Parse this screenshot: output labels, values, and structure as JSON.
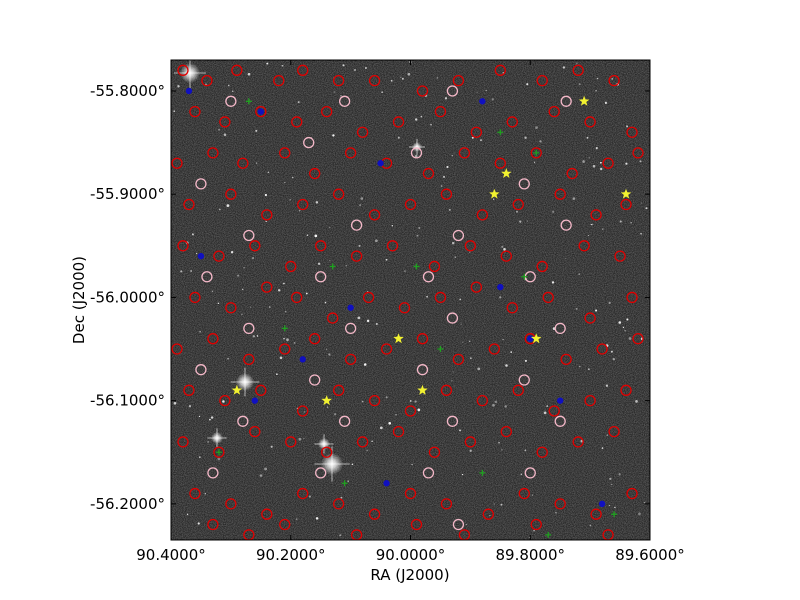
{
  "chart_data": {
    "type": "scatter",
    "title": "",
    "xlabel": "RA (J2000)",
    "ylabel": "Dec (J2000)",
    "xlim": [
      90.4,
      89.6
    ],
    "ylim": [
      -56.235,
      -55.77
    ],
    "grid": false,
    "x_ticks": [
      {
        "value": 90.4,
        "label": "90.4000°"
      },
      {
        "value": 90.2,
        "label": "90.2000°"
      },
      {
        "value": 90.0,
        "label": "90.0000°"
      },
      {
        "value": 89.8,
        "label": "89.8000°"
      },
      {
        "value": 89.6,
        "label": "89.6000°"
      }
    ],
    "y_ticks": [
      {
        "value": -55.8,
        "label": "-55.8000°"
      },
      {
        "value": -55.9,
        "label": "-55.9000°"
      },
      {
        "value": -56.0,
        "label": "-56.0000°"
      },
      {
        "value": -56.1,
        "label": "-56.1000°"
      },
      {
        "value": -56.2,
        "label": "-56.2000°"
      }
    ],
    "background": "sky-image-grayscale",
    "series": [
      {
        "marker": "open-circle",
        "color": "#e00000",
        "points": [
          [
            90.38,
            -55.78
          ],
          [
            90.34,
            -55.79
          ],
          [
            90.29,
            -55.78
          ],
          [
            90.22,
            -55.79
          ],
          [
            90.18,
            -55.78
          ],
          [
            90.12,
            -55.79
          ],
          [
            90.06,
            -55.79
          ],
          [
            89.98,
            -55.8
          ],
          [
            89.92,
            -55.79
          ],
          [
            89.85,
            -55.78
          ],
          [
            89.78,
            -55.79
          ],
          [
            89.72,
            -55.78
          ],
          [
            89.66,
            -55.79
          ],
          [
            90.36,
            -55.82
          ],
          [
            90.31,
            -55.83
          ],
          [
            90.25,
            -55.82
          ],
          [
            90.19,
            -55.83
          ],
          [
            90.14,
            -55.82
          ],
          [
            90.08,
            -55.84
          ],
          [
            90.02,
            -55.83
          ],
          [
            89.95,
            -55.82
          ],
          [
            89.89,
            -55.84
          ],
          [
            89.83,
            -55.83
          ],
          [
            89.76,
            -55.82
          ],
          [
            89.7,
            -55.83
          ],
          [
            89.63,
            -55.84
          ],
          [
            90.39,
            -55.87
          ],
          [
            90.33,
            -55.86
          ],
          [
            90.28,
            -55.87
          ],
          [
            90.21,
            -55.86
          ],
          [
            90.16,
            -55.88
          ],
          [
            90.1,
            -55.86
          ],
          [
            90.04,
            -55.87
          ],
          [
            89.97,
            -55.88
          ],
          [
            89.91,
            -55.86
          ],
          [
            89.85,
            -55.87
          ],
          [
            89.79,
            -55.86
          ],
          [
            89.73,
            -55.88
          ],
          [
            89.67,
            -55.87
          ],
          [
            89.62,
            -55.86
          ],
          [
            90.37,
            -55.91
          ],
          [
            90.3,
            -55.9
          ],
          [
            90.24,
            -55.92
          ],
          [
            90.18,
            -55.91
          ],
          [
            90.12,
            -55.9
          ],
          [
            90.06,
            -55.92
          ],
          [
            90.0,
            -55.91
          ],
          [
            89.94,
            -55.9
          ],
          [
            89.88,
            -55.92
          ],
          [
            89.82,
            -55.91
          ],
          [
            89.75,
            -55.9
          ],
          [
            89.69,
            -55.92
          ],
          [
            89.64,
            -55.91
          ],
          [
            90.38,
            -55.95
          ],
          [
            90.32,
            -55.96
          ],
          [
            90.26,
            -55.95
          ],
          [
            90.2,
            -55.97
          ],
          [
            90.15,
            -55.95
          ],
          [
            90.09,
            -55.96
          ],
          [
            90.03,
            -55.95
          ],
          [
            89.96,
            -55.97
          ],
          [
            89.9,
            -55.95
          ],
          [
            89.84,
            -55.96
          ],
          [
            89.78,
            -55.97
          ],
          [
            89.71,
            -55.95
          ],
          [
            89.65,
            -55.96
          ],
          [
            90.36,
            -56.0
          ],
          [
            90.3,
            -56.01
          ],
          [
            90.24,
            -55.99
          ],
          [
            90.19,
            -56.0
          ],
          [
            90.13,
            -56.02
          ],
          [
            90.07,
            -56.0
          ],
          [
            90.01,
            -56.01
          ],
          [
            89.95,
            -56.0
          ],
          [
            89.89,
            -55.99
          ],
          [
            89.83,
            -56.01
          ],
          [
            89.77,
            -56.0
          ],
          [
            89.7,
            -56.02
          ],
          [
            89.63,
            -56.0
          ],
          [
            90.39,
            -56.05
          ],
          [
            90.33,
            -56.04
          ],
          [
            90.27,
            -56.06
          ],
          [
            90.21,
            -56.05
          ],
          [
            90.16,
            -56.04
          ],
          [
            90.1,
            -56.06
          ],
          [
            90.04,
            -56.05
          ],
          [
            89.98,
            -56.04
          ],
          [
            89.92,
            -56.06
          ],
          [
            89.86,
            -56.05
          ],
          [
            89.8,
            -56.04
          ],
          [
            89.74,
            -56.06
          ],
          [
            89.68,
            -56.05
          ],
          [
            89.62,
            -56.04
          ],
          [
            90.37,
            -56.09
          ],
          [
            90.31,
            -56.1
          ],
          [
            90.25,
            -56.09
          ],
          [
            90.18,
            -56.11
          ],
          [
            90.12,
            -56.09
          ],
          [
            90.06,
            -56.1
          ],
          [
            90.0,
            -56.11
          ],
          [
            89.94,
            -56.09
          ],
          [
            89.88,
            -56.1
          ],
          [
            89.82,
            -56.09
          ],
          [
            89.76,
            -56.11
          ],
          [
            89.7,
            -56.1
          ],
          [
            89.64,
            -56.09
          ],
          [
            90.38,
            -56.14
          ],
          [
            90.32,
            -56.15
          ],
          [
            90.26,
            -56.13
          ],
          [
            90.2,
            -56.14
          ],
          [
            90.14,
            -56.15
          ],
          [
            90.08,
            -56.14
          ],
          [
            90.02,
            -56.13
          ],
          [
            89.96,
            -56.15
          ],
          [
            89.9,
            -56.14
          ],
          [
            89.84,
            -56.13
          ],
          [
            89.78,
            -56.15
          ],
          [
            89.72,
            -56.14
          ],
          [
            89.66,
            -56.13
          ],
          [
            90.36,
            -56.19
          ],
          [
            90.3,
            -56.2
          ],
          [
            90.24,
            -56.21
          ],
          [
            90.18,
            -56.19
          ],
          [
            90.12,
            -56.2
          ],
          [
            90.06,
            -56.21
          ],
          [
            90.0,
            -56.19
          ],
          [
            89.94,
            -56.2
          ],
          [
            89.87,
            -56.21
          ],
          [
            89.81,
            -56.19
          ],
          [
            89.75,
            -56.2
          ],
          [
            89.69,
            -56.21
          ],
          [
            89.63,
            -56.19
          ],
          [
            90.33,
            -56.22
          ],
          [
            90.27,
            -56.23
          ],
          [
            90.21,
            -56.22
          ],
          [
            90.09,
            -56.23
          ],
          [
            89.99,
            -56.22
          ],
          [
            89.91,
            -56.23
          ],
          [
            89.79,
            -56.22
          ],
          [
            89.67,
            -56.23
          ]
        ]
      },
      {
        "marker": "open-circle",
        "color": "#f4b8c8",
        "points": [
          [
            90.3,
            -55.81
          ],
          [
            90.11,
            -55.81
          ],
          [
            89.93,
            -55.8
          ],
          [
            89.74,
            -55.81
          ],
          [
            90.35,
            -55.89
          ],
          [
            90.17,
            -55.85
          ],
          [
            89.99,
            -55.86
          ],
          [
            89.81,
            -55.89
          ],
          [
            90.27,
            -55.94
          ],
          [
            90.09,
            -55.93
          ],
          [
            89.92,
            -55.94
          ],
          [
            89.74,
            -55.93
          ],
          [
            90.34,
            -55.98
          ],
          [
            90.15,
            -55.98
          ],
          [
            89.97,
            -55.98
          ],
          [
            89.8,
            -55.98
          ],
          [
            90.27,
            -56.03
          ],
          [
            90.1,
            -56.03
          ],
          [
            89.93,
            -56.02
          ],
          [
            89.75,
            -56.03
          ],
          [
            90.35,
            -56.07
          ],
          [
            90.16,
            -56.08
          ],
          [
            89.98,
            -56.07
          ],
          [
            89.81,
            -56.08
          ],
          [
            90.28,
            -56.12
          ],
          [
            90.11,
            -56.12
          ],
          [
            89.93,
            -56.12
          ],
          [
            89.75,
            -56.12
          ],
          [
            90.33,
            -56.17
          ],
          [
            90.15,
            -56.17
          ],
          [
            89.97,
            -56.17
          ],
          [
            89.8,
            -56.17
          ],
          [
            89.92,
            -56.22
          ]
        ]
      },
      {
        "marker": "filled-dot",
        "color": "#1010c0",
        "points": [
          [
            90.37,
            -55.8
          ],
          [
            90.25,
            -55.82
          ],
          [
            89.88,
            -55.81
          ],
          [
            90.05,
            -55.87
          ],
          [
            90.35,
            -55.96
          ],
          [
            90.1,
            -56.01
          ],
          [
            89.85,
            -55.99
          ],
          [
            90.18,
            -56.06
          ],
          [
            89.8,
            -56.04
          ],
          [
            90.26,
            -56.1
          ],
          [
            89.75,
            -56.1
          ],
          [
            90.04,
            -56.18
          ],
          [
            89.68,
            -56.2
          ]
        ]
      },
      {
        "marker": "star",
        "color": "#f2f230",
        "points": [
          [
            89.71,
            -55.81
          ],
          [
            89.84,
            -55.88
          ],
          [
            89.86,
            -55.9
          ],
          [
            89.64,
            -55.9
          ],
          [
            90.02,
            -56.04
          ],
          [
            89.79,
            -56.04
          ],
          [
            90.29,
            -56.09
          ],
          [
            89.98,
            -56.09
          ],
          [
            90.14,
            -56.1
          ]
        ]
      },
      {
        "marker": "cross",
        "color": "#20a020",
        "points": [
          [
            90.27,
            -55.81
          ],
          [
            89.85,
            -55.84
          ],
          [
            89.79,
            -55.86
          ],
          [
            90.13,
            -55.97
          ],
          [
            89.99,
            -55.97
          ],
          [
            89.81,
            -55.98
          ],
          [
            90.21,
            -56.03
          ],
          [
            89.95,
            -56.05
          ],
          [
            90.32,
            -56.15
          ],
          [
            90.11,
            -56.18
          ],
          [
            89.88,
            -56.17
          ],
          [
            89.77,
            -56.23
          ],
          [
            89.66,
            -56.21
          ]
        ]
      }
    ]
  }
}
